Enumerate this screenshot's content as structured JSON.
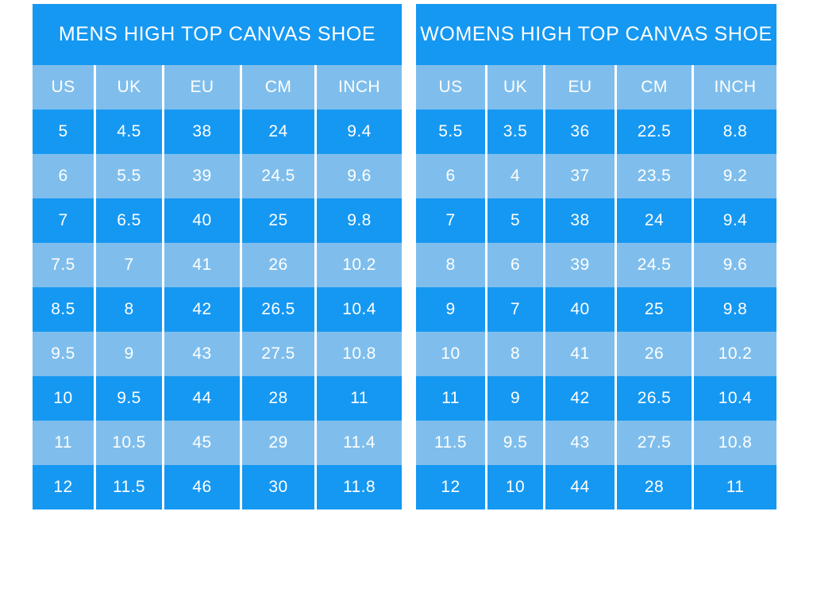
{
  "colors": {
    "primary_blue": "#1598F2",
    "light_blue": "#7FBEEC",
    "text_white": "#FFFFFF",
    "page_background": "#FFFFFF"
  },
  "chart_data": [
    {
      "type": "table",
      "title": "MENS HIGH TOP CANVAS SHOE",
      "columns": [
        "US",
        "UK",
        "EU",
        "CM",
        "INCH"
      ],
      "rows": [
        [
          5,
          4.5,
          38,
          24,
          9.4
        ],
        [
          6,
          5.5,
          39,
          24.5,
          9.6
        ],
        [
          7,
          6.5,
          40,
          25,
          9.8
        ],
        [
          7.5,
          7,
          41,
          26,
          10.2
        ],
        [
          8.5,
          8,
          42,
          26.5,
          10.4
        ],
        [
          9.5,
          9,
          43,
          27.5,
          10.8
        ],
        [
          10,
          9.5,
          44,
          28,
          11
        ],
        [
          11,
          10.5,
          45,
          29,
          11.4
        ],
        [
          12,
          11.5,
          46,
          30,
          11.8
        ]
      ]
    },
    {
      "type": "table",
      "title": "WOMENS HIGH TOP CANVAS SHOE",
      "columns": [
        "US",
        "UK",
        "EU",
        "CM",
        "INCH"
      ],
      "rows": [
        [
          5.5,
          3.5,
          36,
          22.5,
          8.8
        ],
        [
          6,
          4,
          37,
          23.5,
          9.2
        ],
        [
          7,
          5,
          38,
          24,
          9.4
        ],
        [
          8,
          6,
          39,
          24.5,
          9.6
        ],
        [
          9,
          7,
          40,
          25,
          9.8
        ],
        [
          10,
          8,
          41,
          26,
          10.2
        ],
        [
          11,
          9,
          42,
          26.5,
          10.4
        ],
        [
          11.5,
          9.5,
          43,
          27.5,
          10.8
        ],
        [
          12,
          10,
          44,
          28,
          11
        ]
      ]
    }
  ]
}
